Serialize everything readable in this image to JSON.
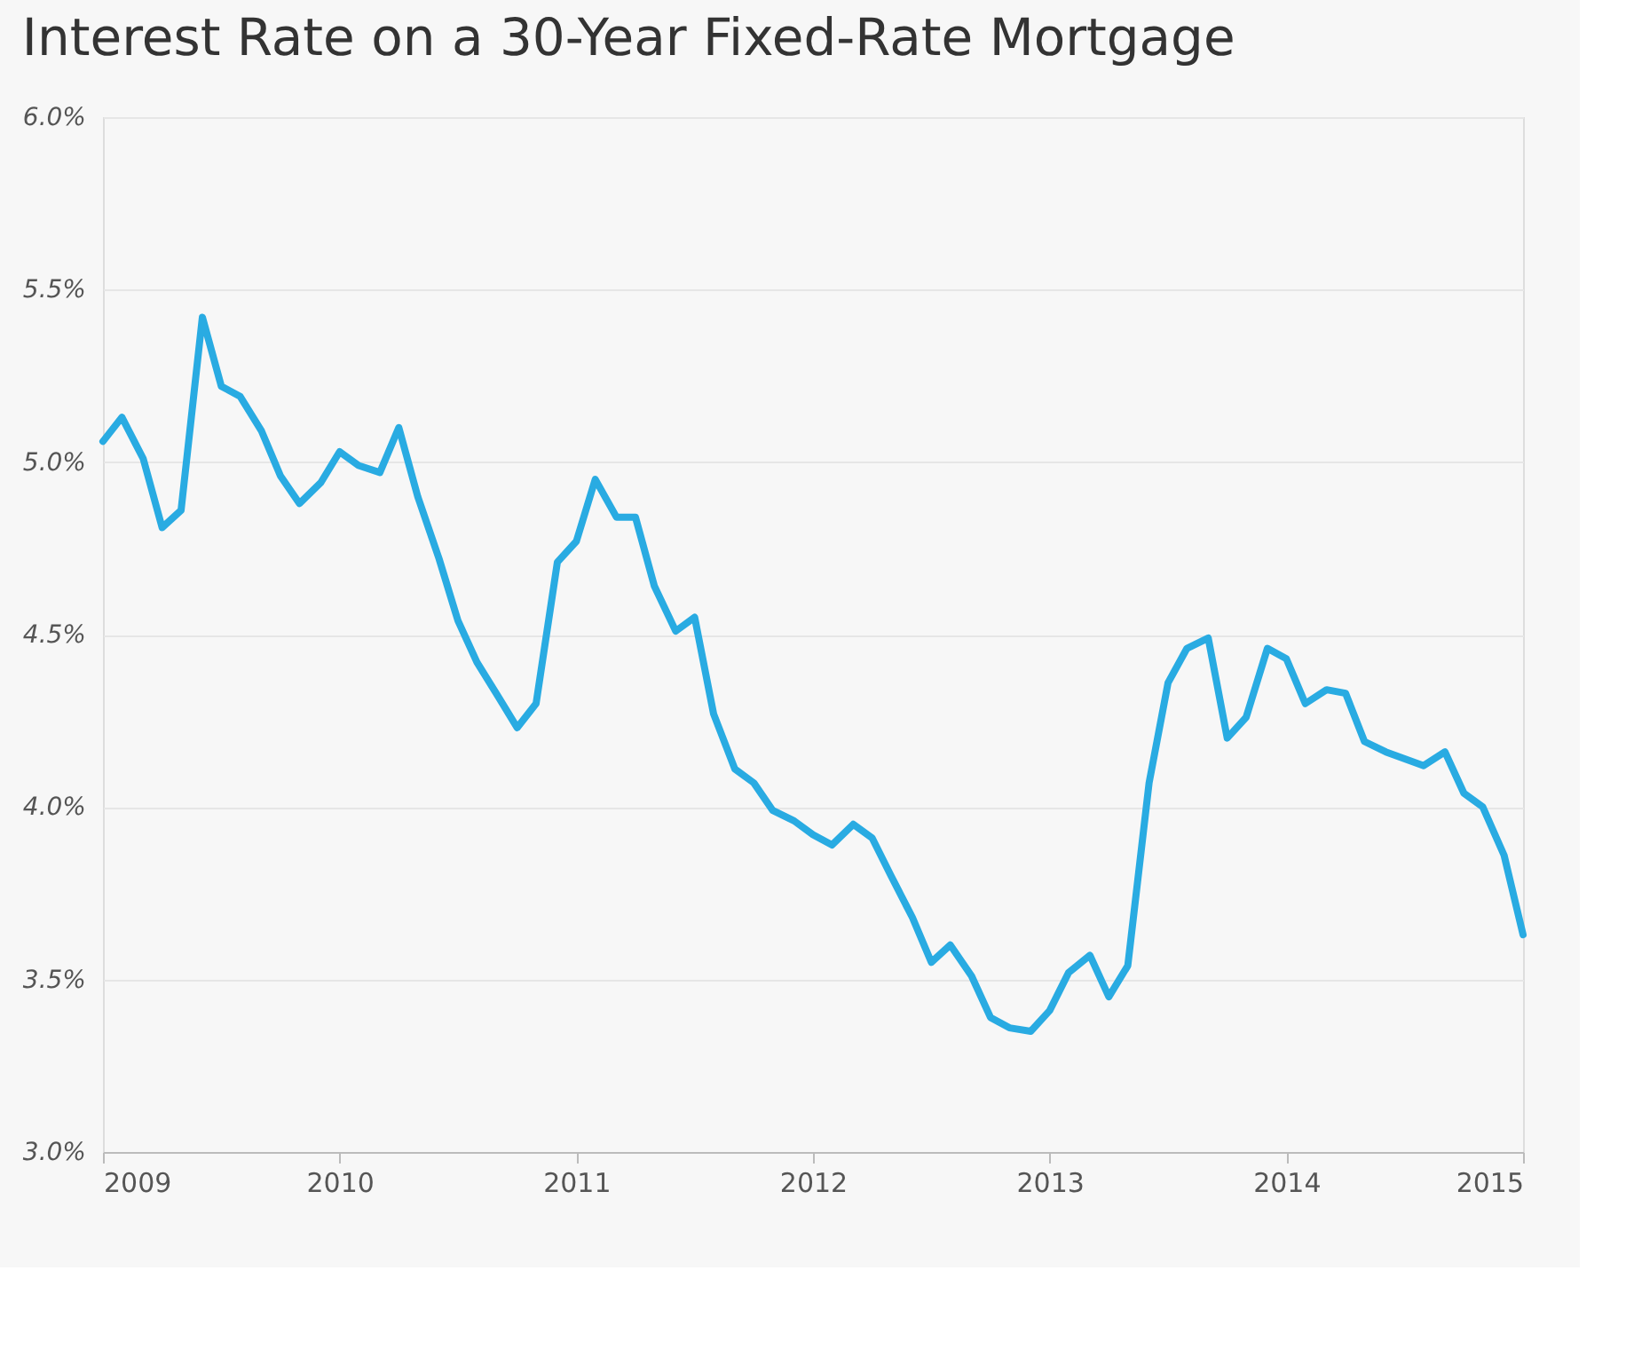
{
  "chart_data": {
    "type": "line",
    "title": "Interest Rate on a 30-Year Fixed-Rate Mortgage",
    "x": [
      2009.0,
      2009.08,
      2009.17,
      2009.25,
      2009.33,
      2009.42,
      2009.5,
      2009.58,
      2009.67,
      2009.75,
      2009.83,
      2009.92,
      2010.0,
      2010.08,
      2010.17,
      2010.25,
      2010.33,
      2010.42,
      2010.5,
      2010.58,
      2010.67,
      2010.75,
      2010.83,
      2010.92,
      2011.0,
      2011.08,
      2011.17,
      2011.25,
      2011.33,
      2011.42,
      2011.5,
      2011.58,
      2011.67,
      2011.75,
      2011.83,
      2011.92,
      2012.0,
      2012.08,
      2012.17,
      2012.25,
      2012.33,
      2012.42,
      2012.5,
      2012.58,
      2012.67,
      2012.75,
      2012.83,
      2012.92,
      2013.0,
      2013.08,
      2013.17,
      2013.25,
      2013.33,
      2013.42,
      2013.5,
      2013.58,
      2013.67,
      2013.75,
      2013.83,
      2013.92,
      2014.0,
      2014.08,
      2014.17,
      2014.25,
      2014.33,
      2014.42,
      2014.5,
      2014.58,
      2014.67,
      2014.75,
      2014.83,
      2014.92,
      2015.0
    ],
    "series": [
      {
        "color": "#29abe2",
        "values": [
          5.06,
          5.13,
          5.01,
          4.81,
          4.86,
          5.42,
          5.22,
          5.19,
          5.09,
          4.96,
          4.88,
          4.94,
          5.03,
          4.99,
          4.97,
          5.1,
          4.9,
          4.72,
          4.54,
          4.42,
          4.32,
          4.23,
          4.3,
          4.71,
          4.77,
          4.95,
          4.84,
          4.84,
          4.64,
          4.51,
          4.55,
          4.27,
          4.11,
          4.07,
          3.99,
          3.96,
          3.92,
          3.89,
          3.95,
          3.91,
          3.8,
          3.68,
          3.55,
          3.6,
          3.51,
          3.39,
          3.36,
          3.35,
          3.41,
          3.52,
          3.57,
          3.45,
          3.54,
          4.07,
          4.36,
          4.46,
          4.49,
          4.2,
          4.26,
          4.46,
          4.43,
          4.3,
          4.34,
          4.33,
          4.19,
          4.16,
          4.14,
          4.12,
          4.16,
          4.04,
          4.0,
          3.86,
          3.63
        ]
      }
    ],
    "xlim": [
      2009,
      2015
    ],
    "xticks": [
      2009,
      2010,
      2011,
      2012,
      2013,
      2014,
      2015
    ],
    "ylim": [
      3,
      6
    ],
    "yticks": [
      {
        "value": 3,
        "label": "3.0%"
      },
      {
        "value": 3.5,
        "label": "3.5%"
      },
      {
        "value": 4,
        "label": "4.0%"
      },
      {
        "value": 4.5,
        "label": "4.5%"
      },
      {
        "value": 5,
        "label": "5.0%"
      },
      {
        "value": 5.5,
        "label": "5.5%"
      },
      {
        "value": 6,
        "label": "6.0%"
      }
    ],
    "grid": "y",
    "marker": "none",
    "line_style": "solid"
  }
}
